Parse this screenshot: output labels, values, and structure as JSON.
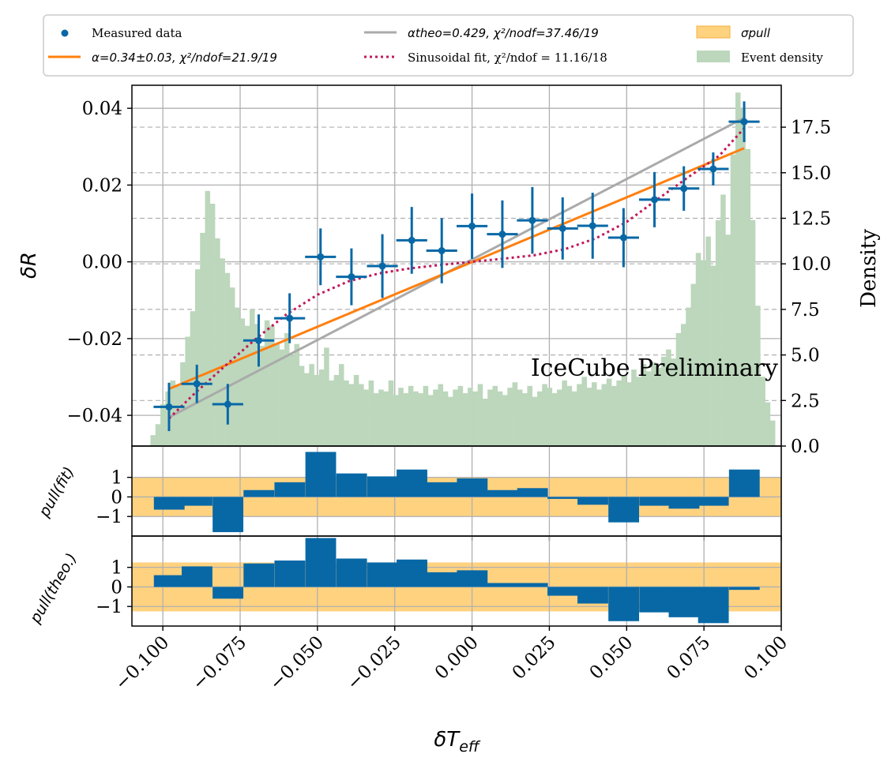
{
  "chart_data": {
    "type": "errorbar+histogram",
    "title": "",
    "annotation": {
      "text": "IceCube Preliminary",
      "color": "#ee0000"
    },
    "xlabel": "δT_eff",
    "xlabel_main": "δT",
    "xlabel_sub": "eff",
    "ylabel": "δR",
    "ylabel_right": "Density",
    "xlim": [
      -0.11,
      0.1
    ],
    "ylim": [
      -0.048,
      0.046
    ],
    "ylim_right": [
      0,
      19.8
    ],
    "x_ticks": [
      -0.1,
      -0.075,
      -0.05,
      -0.025,
      0.0,
      0.025,
      0.05,
      0.075,
      0.1
    ],
    "x_tick_labels": [
      "−0.100",
      "−0.075",
      "−0.050",
      "−0.025",
      "0.000",
      "0.025",
      "0.050",
      "0.075",
      "0.100"
    ],
    "y_ticks": [
      -0.04,
      -0.02,
      0.0,
      0.02,
      0.04
    ],
    "y_tick_labels": [
      "−0.04",
      "−0.02",
      "0.00",
      "0.02",
      "0.04"
    ],
    "y_right_ticks": [
      0,
      2.5,
      5,
      7.5,
      10,
      12.5,
      15,
      17.5
    ],
    "y_right_tick_labels": [
      "0.0",
      "2.5",
      "5.0",
      "7.5",
      "10.0",
      "12.5",
      "15.0",
      "17.5"
    ],
    "grid": true,
    "colors": {
      "measured": "#0868a6",
      "fit": "#ff7f0e",
      "theo": "#aaaaaa",
      "sinus": "#c2185b",
      "sigma_band": "#ffd27f",
      "density": "#bcd7bc",
      "annotation": "#ee0000"
    },
    "legend": {
      "placement": "top (above plot)",
      "entries": [
        {
          "key": "measured",
          "label": "Measured data"
        },
        {
          "key": "fit",
          "label": "α=0.34±0.03, χ²/ndof=21.9/19"
        },
        {
          "key": "theo",
          "label": "αtheo=0.429, χ²/nodf=37.46/19"
        },
        {
          "key": "sinus",
          "label": "Sinusoidal fit, χ²/ndof = 11.16/18"
        },
        {
          "key": "sigma_band",
          "label": "σpull"
        },
        {
          "key": "density",
          "label": "Event density"
        }
      ]
    },
    "measured": {
      "x": [
        -0.098,
        -0.089,
        -0.079,
        -0.069,
        -0.059,
        -0.049,
        -0.039,
        -0.029,
        -0.0195,
        -0.0098,
        0.0,
        0.0098,
        0.0195,
        0.0293,
        0.039,
        0.049,
        0.059,
        0.0685,
        0.078,
        0.088
      ],
      "y": [
        -0.0378,
        -0.0318,
        -0.0371,
        -0.0205,
        -0.0147,
        0.0013,
        -0.0039,
        -0.0011,
        0.0056,
        0.0029,
        0.0093,
        0.0072,
        0.0108,
        0.0087,
        0.0094,
        0.0063,
        0.0162,
        0.0191,
        0.0242,
        0.0365
      ],
      "xerr": [
        0.005,
        0.005,
        0.005,
        0.005,
        0.005,
        0.005,
        0.005,
        0.005,
        0.005,
        0.005,
        0.005,
        0.005,
        0.005,
        0.005,
        0.005,
        0.005,
        0.005,
        0.005,
        0.005,
        0.005
      ],
      "yerr": [
        0.0063,
        0.005,
        0.0053,
        0.0068,
        0.0065,
        0.0074,
        0.0074,
        0.0083,
        0.0087,
        0.0085,
        0.0085,
        0.0088,
        0.0087,
        0.0081,
        0.0086,
        0.0077,
        0.0072,
        0.0058,
        0.0043,
        0.0053
      ]
    },
    "fit_line": {
      "x": [
        -0.098,
        0.088
      ],
      "y": [
        -0.0331,
        0.0296
      ]
    },
    "theo_line": {
      "x": [
        -0.098,
        0.088
      ],
      "y": [
        -0.0405,
        0.0375
      ]
    },
    "sinusoidal_fit": {
      "x": [
        -0.098,
        -0.09,
        -0.08,
        -0.07,
        -0.06,
        -0.05,
        -0.04,
        -0.03,
        -0.02,
        -0.01,
        0.0,
        0.01,
        0.02,
        0.03,
        0.04,
        0.05,
        0.06,
        0.07,
        0.08,
        0.088
      ],
      "y": [
        -0.0408,
        -0.0345,
        -0.0272,
        -0.0201,
        -0.0137,
        -0.0086,
        -0.0051,
        -0.003,
        -0.0017,
        -0.0008,
        0.0,
        0.0008,
        0.0017,
        0.0033,
        0.0061,
        0.0104,
        0.0163,
        0.0221,
        0.0277,
        0.0348
      ]
    },
    "density_histogram": {
      "x_range": [
        -0.104,
        0.098
      ],
      "values": [
        0.6,
        1.2,
        2.3,
        3.0,
        3.6,
        3.3,
        4.6,
        6.0,
        7.4,
        9.7,
        11.7,
        14.0,
        13.3,
        11.4,
        10.3,
        9.5,
        8.7,
        7.6,
        7.0,
        6.6,
        7.5,
        6.7,
        5.5,
        6.9,
        6.6,
        5.6,
        5.3,
        6.2,
        5.0,
        5.6,
        4.4,
        4.0,
        4.5,
        3.9,
        4.2,
        5.4,
        3.6,
        3.9,
        4.5,
        3.6,
        3.4,
        3.9,
        3.4,
        3.1,
        3.6,
        2.9,
        3.1,
        3.0,
        3.6,
        2.8,
        3.2,
        2.9,
        3.3,
        3.0,
        2.9,
        3.3,
        2.8,
        3.1,
        3.4,
        3.0,
        2.7,
        3.1,
        3.3,
        2.9,
        3.2,
        3.0,
        3.4,
        2.6,
        3.1,
        3.3,
        3.0,
        2.8,
        3.2,
        3.5,
        3.1,
        2.9,
        3.3,
        2.7,
        3.0,
        3.4,
        3.2,
        2.9,
        3.1,
        3.6,
        3.3,
        3.0,
        3.4,
        3.8,
        3.2,
        3.5,
        3.1,
        3.4,
        3.7,
        3.3,
        3.6,
        3.9,
        3.5,
        4.2,
        3.8,
        4.5,
        4.1,
        4.6,
        4.3,
        4.9,
        5.3,
        4.8,
        6.2,
        6.7,
        7.6,
        8.9,
        10.6,
        10.2,
        11.5,
        9.9,
        12.4,
        13.8,
        11.6,
        16.0,
        19.4,
        18.5,
        16.3,
        12.4,
        7.7,
        3.8,
        2.4,
        1.4
      ]
    },
    "pull_fit": {
      "label": "pull(fit)",
      "sigma_band": [
        -1,
        1
      ],
      "y_ticks": [
        -1,
        0,
        1
      ],
      "y_tick_labels": [
        "−1",
        "0",
        "1"
      ],
      "ylim": [
        -2.0,
        2.6
      ],
      "values": [
        -0.65,
        -0.45,
        -1.8,
        0.35,
        0.75,
        2.3,
        1.2,
        1.05,
        1.4,
        0.75,
        0.95,
        0.35,
        0.45,
        -0.1,
        -0.4,
        -1.3,
        -0.45,
        -0.6,
        -0.45,
        1.4
      ]
    },
    "pull_theo": {
      "label": "pull(theo.)",
      "sigma_band": [
        -1.25,
        1.25
      ],
      "y_ticks": [
        -1,
        0,
        1
      ],
      "y_tick_labels": [
        "−1",
        "0",
        "1"
      ],
      "ylim": [
        -2.0,
        2.6
      ],
      "values": [
        0.6,
        1.05,
        -0.6,
        1.2,
        1.35,
        2.5,
        1.45,
        1.25,
        1.4,
        0.75,
        0.85,
        0.2,
        0.2,
        -0.45,
        -0.85,
        -1.75,
        -1.3,
        -1.55,
        -1.85,
        -0.15
      ]
    }
  }
}
